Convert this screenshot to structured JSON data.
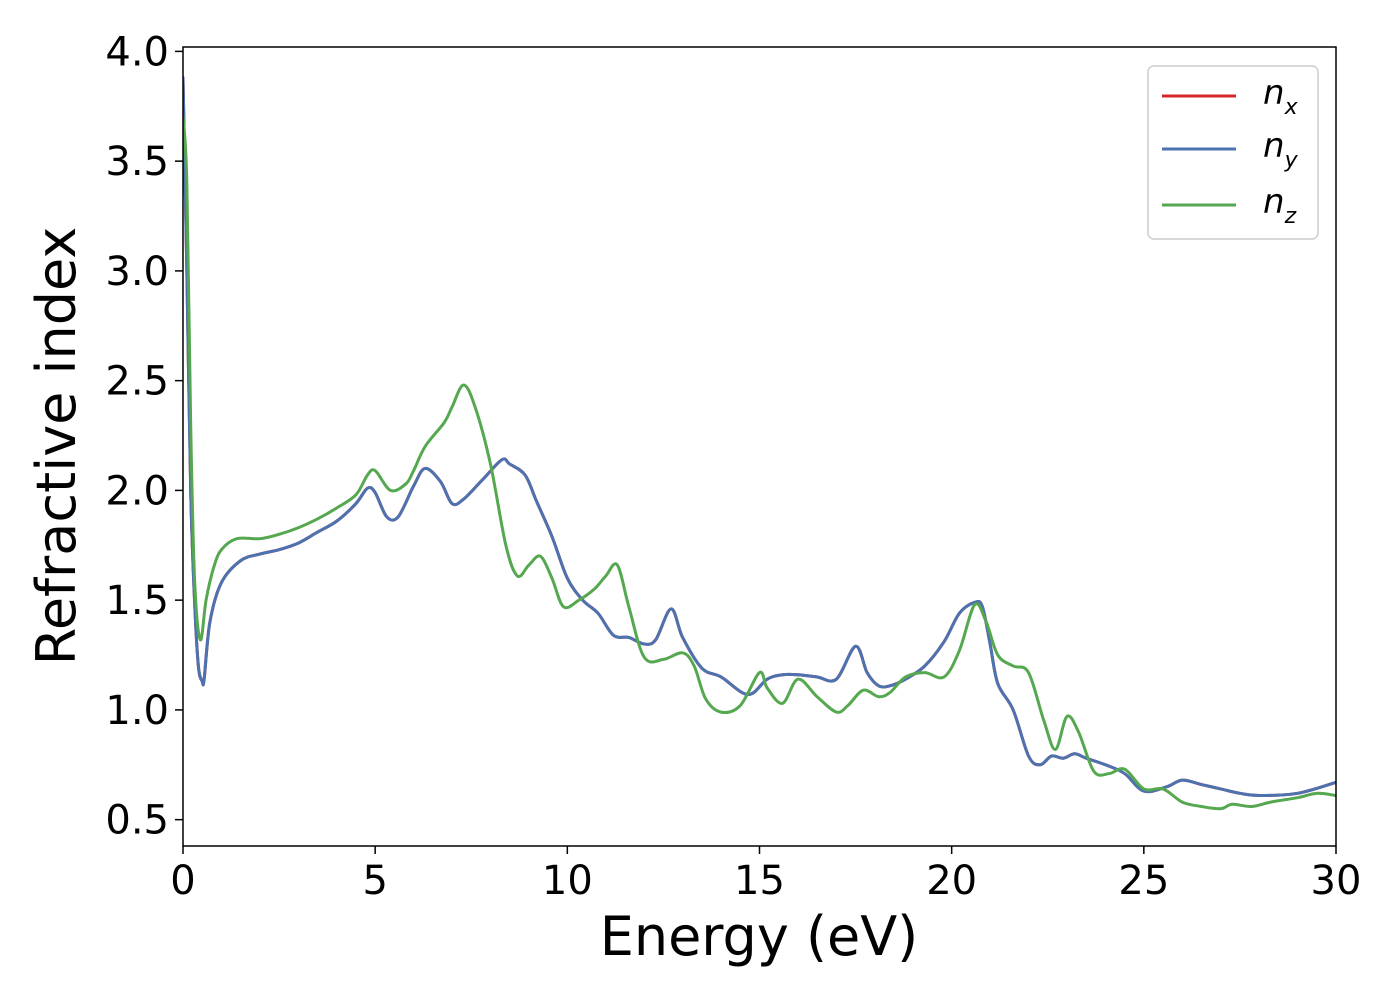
{
  "chart_data": {
    "type": "line",
    "title": "",
    "xlabel": "Energy (eV)",
    "ylabel": "Refractive index",
    "xlim": [
      0,
      30
    ],
    "ylim": [
      0.38,
      4.02
    ],
    "xticks": [
      0,
      5,
      10,
      15,
      20,
      25,
      30
    ],
    "xtick_labels": [
      "0",
      "5",
      "10",
      "15",
      "20",
      "25",
      "30"
    ],
    "yticks": [
      0.5,
      1.0,
      1.5,
      2.0,
      2.5,
      3.0,
      3.5,
      4.0
    ],
    "ytick_labels": [
      "0.5",
      "1.0",
      "1.5",
      "2.0",
      "2.5",
      "3.0",
      "3.5",
      "4.0"
    ],
    "grid": false,
    "legend_position": "top-right",
    "series": [
      {
        "name": "n",
        "subscript": "x",
        "color": "#d62728",
        "x": [
          0,
          0.1,
          0.2,
          0.3,
          0.4,
          0.5,
          0.55,
          0.7,
          1.0,
          1.5,
          2,
          2.5,
          3,
          3.5,
          4,
          4.5,
          4.8,
          5.0,
          5.3,
          5.6,
          6.0,
          6.3,
          6.7,
          7.0,
          7.3,
          7.8,
          8.3,
          8.5,
          8.9,
          9.2,
          9.6,
          10.0,
          10.4,
          10.8,
          11.2,
          11.6,
          12.0,
          12.3,
          12.7,
          13.0,
          13.5,
          14.0,
          14.7,
          15.2,
          15.6,
          16.0,
          16.5,
          17.0,
          17.5,
          17.8,
          18.1,
          18.4,
          18.8,
          19.3,
          19.8,
          20.2,
          20.6,
          20.8,
          21.0,
          21.2,
          21.6,
          22.0,
          22.3,
          22.6,
          22.9,
          23.2,
          23.5,
          24.0,
          24.5,
          25.0,
          25.6,
          26.0,
          26.5,
          27.0,
          27.5,
          28.0,
          29.0,
          30.0
        ],
        "y": [
          3.88,
          3.0,
          2.0,
          1.5,
          1.2,
          1.13,
          1.14,
          1.4,
          1.58,
          1.68,
          1.71,
          1.73,
          1.76,
          1.81,
          1.86,
          1.94,
          2.01,
          1.99,
          1.88,
          1.88,
          2.02,
          2.1,
          2.04,
          1.94,
          1.96,
          2.05,
          2.14,
          2.12,
          2.07,
          1.95,
          1.79,
          1.6,
          1.5,
          1.44,
          1.34,
          1.33,
          1.3,
          1.32,
          1.46,
          1.33,
          1.19,
          1.15,
          1.07,
          1.14,
          1.16,
          1.16,
          1.15,
          1.14,
          1.29,
          1.17,
          1.11,
          1.11,
          1.14,
          1.2,
          1.31,
          1.44,
          1.49,
          1.47,
          1.3,
          1.12,
          1.0,
          0.79,
          0.75,
          0.79,
          0.78,
          0.8,
          0.78,
          0.75,
          0.71,
          0.63,
          0.65,
          0.68,
          0.66,
          0.64,
          0.62,
          0.61,
          0.62,
          0.67
        ]
      },
      {
        "name": "n",
        "subscript": "y",
        "color": "#4c72b0",
        "x": [
          0,
          0.1,
          0.2,
          0.3,
          0.4,
          0.5,
          0.55,
          0.7,
          1.0,
          1.5,
          2,
          2.5,
          3,
          3.5,
          4,
          4.5,
          4.8,
          5.0,
          5.3,
          5.6,
          6.0,
          6.3,
          6.7,
          7.0,
          7.3,
          7.8,
          8.3,
          8.5,
          8.9,
          9.2,
          9.6,
          10.0,
          10.4,
          10.8,
          11.2,
          11.6,
          12.0,
          12.3,
          12.7,
          13.0,
          13.5,
          14.0,
          14.7,
          15.2,
          15.6,
          16.0,
          16.5,
          17.0,
          17.5,
          17.8,
          18.1,
          18.4,
          18.8,
          19.3,
          19.8,
          20.2,
          20.6,
          20.8,
          21.0,
          21.2,
          21.6,
          22.0,
          22.3,
          22.6,
          22.9,
          23.2,
          23.5,
          24.0,
          24.5,
          25.0,
          25.6,
          26.0,
          26.5,
          27.0,
          27.5,
          28.0,
          29.0,
          30.0
        ],
        "y": [
          3.88,
          3.0,
          2.0,
          1.5,
          1.2,
          1.13,
          1.14,
          1.4,
          1.58,
          1.68,
          1.71,
          1.73,
          1.76,
          1.81,
          1.86,
          1.94,
          2.01,
          1.99,
          1.88,
          1.88,
          2.02,
          2.1,
          2.04,
          1.94,
          1.96,
          2.05,
          2.14,
          2.12,
          2.07,
          1.95,
          1.79,
          1.6,
          1.5,
          1.44,
          1.34,
          1.33,
          1.3,
          1.32,
          1.46,
          1.33,
          1.19,
          1.15,
          1.07,
          1.14,
          1.16,
          1.16,
          1.15,
          1.14,
          1.29,
          1.17,
          1.11,
          1.11,
          1.14,
          1.2,
          1.31,
          1.44,
          1.49,
          1.47,
          1.3,
          1.12,
          1.0,
          0.79,
          0.75,
          0.79,
          0.78,
          0.8,
          0.78,
          0.75,
          0.71,
          0.63,
          0.65,
          0.68,
          0.66,
          0.64,
          0.62,
          0.61,
          0.62,
          0.67
        ]
      },
      {
        "name": "n",
        "subscript": "z",
        "color": "#55a84f",
        "x": [
          0,
          0.1,
          0.2,
          0.3,
          0.45,
          0.6,
          0.8,
          1.0,
          1.4,
          2.0,
          2.5,
          3.0,
          3.5,
          4.0,
          4.5,
          4.8,
          5.0,
          5.4,
          5.8,
          6.0,
          6.3,
          6.8,
          7.0,
          7.3,
          7.6,
          8.0,
          8.4,
          8.7,
          9.0,
          9.3,
          9.6,
          9.9,
          10.3,
          10.7,
          11.0,
          11.3,
          11.6,
          12.0,
          12.5,
          13.0,
          13.3,
          13.6,
          14.0,
          14.5,
          15.0,
          15.2,
          15.6,
          16.0,
          16.5,
          17.0,
          17.3,
          17.7,
          18.1,
          18.4,
          18.8,
          19.3,
          19.8,
          20.2,
          20.6,
          20.9,
          21.2,
          21.6,
          22.0,
          22.4,
          22.7,
          23.0,
          23.3,
          23.7,
          24.1,
          24.5,
          25.0,
          25.5,
          26.0,
          26.5,
          27.0,
          27.3,
          27.8,
          28.3,
          29.0,
          29.5,
          30.0
        ],
        "y": [
          3.7,
          3.4,
          2.3,
          1.6,
          1.32,
          1.5,
          1.65,
          1.73,
          1.78,
          1.78,
          1.8,
          1.83,
          1.87,
          1.92,
          1.98,
          2.07,
          2.09,
          2.0,
          2.03,
          2.09,
          2.2,
          2.31,
          2.38,
          2.48,
          2.38,
          2.12,
          1.75,
          1.61,
          1.66,
          1.7,
          1.6,
          1.47,
          1.5,
          1.55,
          1.61,
          1.66,
          1.47,
          1.24,
          1.23,
          1.26,
          1.2,
          1.05,
          0.99,
          1.02,
          1.17,
          1.1,
          1.03,
          1.14,
          1.06,
          0.99,
          1.02,
          1.09,
          1.06,
          1.08,
          1.15,
          1.17,
          1.15,
          1.27,
          1.48,
          1.4,
          1.25,
          1.2,
          1.17,
          0.95,
          0.82,
          0.97,
          0.9,
          0.72,
          0.71,
          0.73,
          0.64,
          0.64,
          0.58,
          0.56,
          0.55,
          0.57,
          0.56,
          0.58,
          0.6,
          0.62,
          0.61
        ]
      }
    ]
  }
}
